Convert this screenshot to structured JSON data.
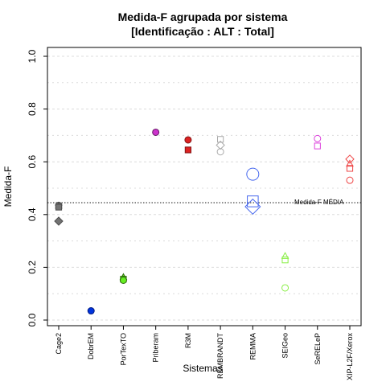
{
  "chart_data": {
    "type": "scatter",
    "title": "Medida-F agrupada por sistema",
    "subtitle": "[Identificação : ALT : Total]",
    "xlabel": "Sistemas",
    "ylabel": "Medida-F",
    "ylim": [
      0,
      1
    ],
    "yticks": [
      "0.0",
      "0.2",
      "0.4",
      "0.6",
      "0.8",
      "1.0"
    ],
    "ytick_values": [
      0,
      0.2,
      0.4,
      0.6,
      0.8,
      1.0
    ],
    "grid": true,
    "categories": [
      "Cage2",
      "DobrEM",
      "PorTexTO",
      "Priberam",
      "R3M",
      "REMBRANDT",
      "REMMA",
      "SEIGeo",
      "SeRELeP",
      "XIP-L2F/Xerox"
    ],
    "reference_line": {
      "label": "Medida-F MÉDIA",
      "value": 0.445
    },
    "points": [
      {
        "category": "Cage2",
        "y": 0.435,
        "shape": "circle",
        "size": "small",
        "fill": "#737373",
        "stroke": "#4d4d4d"
      },
      {
        "category": "Cage2",
        "y": 0.433,
        "shape": "triangle",
        "size": "small",
        "fill": "#737373",
        "stroke": "#4d4d4d"
      },
      {
        "category": "Cage2",
        "y": 0.428,
        "shape": "square",
        "size": "small",
        "fill": "#737373",
        "stroke": "#4d4d4d"
      },
      {
        "category": "Cage2",
        "y": 0.375,
        "shape": "diamond",
        "size": "small",
        "fill": "#737373",
        "stroke": "#4d4d4d"
      },
      {
        "category": "DobrEM",
        "y": 0.035,
        "shape": "circle",
        "size": "small",
        "fill": "#0033dd",
        "stroke": "#001a80"
      },
      {
        "category": "PorTexTO",
        "y": 0.162,
        "shape": "triangle",
        "size": "small",
        "fill": "#66ee22",
        "stroke": "#2d6b0d"
      },
      {
        "category": "PorTexTO",
        "y": 0.155,
        "shape": "square",
        "size": "small",
        "fill": "#66ee22",
        "stroke": "#2d6b0d"
      },
      {
        "category": "PorTexTO",
        "y": 0.151,
        "shape": "circle",
        "size": "small",
        "fill": "#66ee22",
        "stroke": "#2d6b0d"
      },
      {
        "category": "Priberam",
        "y": 0.712,
        "shape": "circle",
        "size": "small",
        "fill": "#cc33cc",
        "stroke": "#661a66"
      },
      {
        "category": "R3M",
        "y": 0.683,
        "shape": "circle",
        "size": "small",
        "fill": "#dd2222",
        "stroke": "#801313"
      },
      {
        "category": "R3M",
        "y": 0.645,
        "shape": "square",
        "size": "small",
        "fill": "#dd2222",
        "stroke": "#801313"
      },
      {
        "category": "REMBRANDT",
        "y": 0.685,
        "shape": "square",
        "size": "small",
        "fill": "none",
        "stroke": "#aaaaaa"
      },
      {
        "category": "REMBRANDT",
        "y": 0.663,
        "shape": "diamond",
        "size": "small",
        "fill": "none",
        "stroke": "#aaaaaa"
      },
      {
        "category": "REMBRANDT",
        "y": 0.638,
        "shape": "circle",
        "size": "small",
        "fill": "none",
        "stroke": "#aaaaaa"
      },
      {
        "category": "REMMA",
        "y": 0.553,
        "shape": "circle",
        "size": "large",
        "fill": "none",
        "stroke": "#4466ee"
      },
      {
        "category": "REMMA",
        "y": 0.45,
        "shape": "square",
        "size": "large",
        "fill": "none",
        "stroke": "#4466ee"
      },
      {
        "category": "REMMA",
        "y": 0.43,
        "shape": "diamond",
        "size": "large",
        "fill": "none",
        "stroke": "#4466ee"
      },
      {
        "category": "SEIGeo",
        "y": 0.242,
        "shape": "triangle",
        "size": "small",
        "fill": "none",
        "stroke": "#88ee44"
      },
      {
        "category": "SEIGeo",
        "y": 0.228,
        "shape": "square",
        "size": "small",
        "fill": "none",
        "stroke": "#88ee44"
      },
      {
        "category": "SEIGeo",
        "y": 0.122,
        "shape": "circle",
        "size": "small",
        "fill": "none",
        "stroke": "#88ee44"
      },
      {
        "category": "SeRELeP",
        "y": 0.688,
        "shape": "circle",
        "size": "small",
        "fill": "none",
        "stroke": "#dd44dd"
      },
      {
        "category": "SeRELeP",
        "y": 0.66,
        "shape": "square",
        "size": "small",
        "fill": "none",
        "stroke": "#dd44dd"
      },
      {
        "category": "XIP-L2F/Xerox",
        "y": 0.61,
        "shape": "diamond",
        "size": "small",
        "fill": "none",
        "stroke": "#ee4444"
      },
      {
        "category": "XIP-L2F/Xerox",
        "y": 0.592,
        "shape": "triangle",
        "size": "small",
        "fill": "none",
        "stroke": "#ee4444"
      },
      {
        "category": "XIP-L2F/Xerox",
        "y": 0.575,
        "shape": "square",
        "size": "small",
        "fill": "none",
        "stroke": "#ee4444"
      },
      {
        "category": "XIP-L2F/Xerox",
        "y": 0.53,
        "shape": "circle",
        "size": "small",
        "fill": "none",
        "stroke": "#ee4444"
      }
    ]
  }
}
